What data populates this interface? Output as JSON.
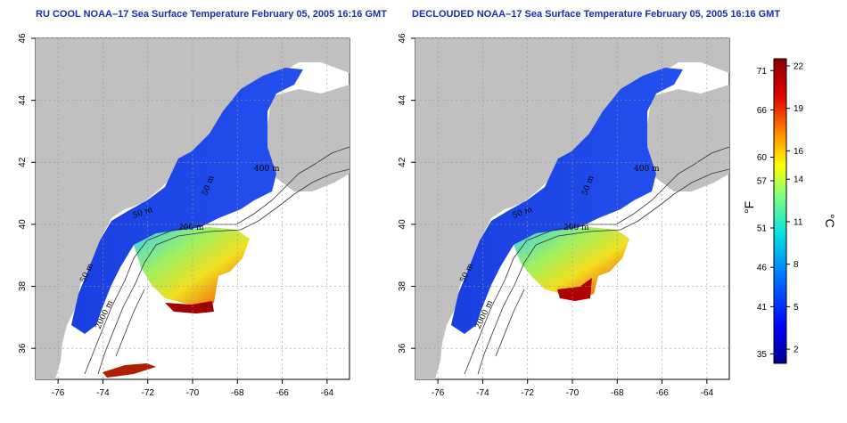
{
  "panels": [
    {
      "id": "left",
      "title": "RU COOL NOAA–17 Sea Surface Temperature February 05, 2005 16:16 GMT",
      "x_ticks": [
        "-76",
        "-74",
        "-72",
        "-70",
        "-68",
        "-66",
        "-64"
      ],
      "y_ticks": [
        "36",
        "38",
        "40",
        "42",
        "44",
        "46"
      ],
      "contour_labels": [
        "50 m",
        "200 m",
        "400 m",
        "2000 m",
        "50 m",
        "50 m"
      ]
    },
    {
      "id": "right",
      "title": "DECLOUDED NOAA–17 Sea Surface Temperature February 05, 2005 16:16 GMT",
      "x_ticks": [
        "-76",
        "-74",
        "-72",
        "-70",
        "-68",
        "-66",
        "-64"
      ],
      "y_ticks": [
        "36",
        "38",
        "40",
        "42",
        "44",
        "46"
      ],
      "contour_labels": [
        "50 m",
        "200 m",
        "400 m",
        "2000 m",
        "50 m",
        "50 m"
      ]
    }
  ],
  "map": {
    "lon_range": [
      -77,
      -63
    ],
    "lat_range": [
      35,
      46
    ],
    "land_color": "#c0c0c0",
    "grid": true
  },
  "colorbar": {
    "fahrenheit_ticks": [
      "71",
      "66",
      "60",
      "57",
      "51",
      "46",
      "41",
      "35"
    ],
    "celsius_ticks": [
      "22",
      "19",
      "16",
      "14",
      "11",
      "8",
      "5",
      "2"
    ],
    "fahrenheit_unit": "°F",
    "celsius_unit": "°C",
    "celsius_range": [
      1,
      22.5
    ],
    "colors": [
      "#00008b",
      "#0000ff",
      "#0080ff",
      "#00e0e0",
      "#80ff80",
      "#ffff00",
      "#ff8000",
      "#e00000",
      "#8b0000"
    ]
  }
}
